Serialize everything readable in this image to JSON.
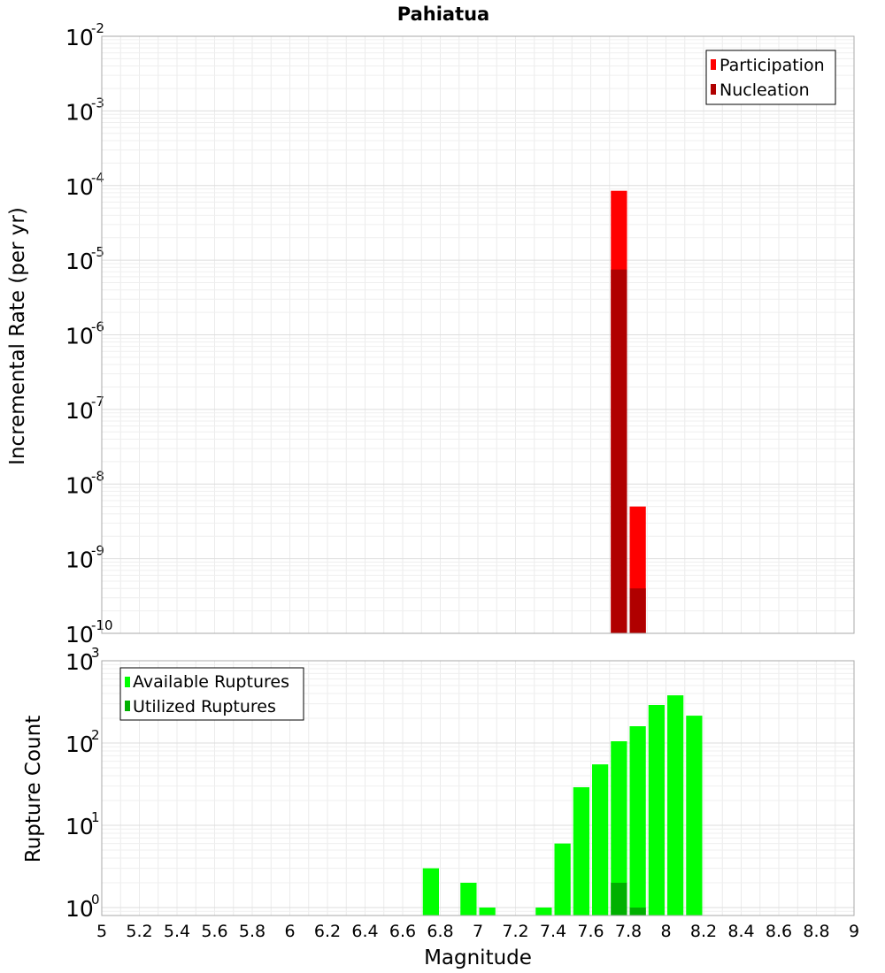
{
  "chart_data": [
    {
      "type": "bar",
      "title": "Pahiatua",
      "xlabel": "",
      "ylabel": "Incremental Rate (per yr)",
      "yscale": "log",
      "ylim": [
        1e-10,
        0.01
      ],
      "xlim": [
        5,
        9
      ],
      "bin_width": 0.1,
      "grid": true,
      "legend_position": "top-right",
      "series": [
        {
          "name": "Participation",
          "color": "#ff0000",
          "points": [
            {
              "x": 7.75,
              "y": 8.5e-05
            },
            {
              "x": 7.85,
              "y": 5e-09
            }
          ]
        },
        {
          "name": "Nucleation",
          "color": "#b00000",
          "points": [
            {
              "x": 7.75,
              "y": 7.5e-06
            },
            {
              "x": 7.85,
              "y": 4e-10
            }
          ]
        }
      ]
    },
    {
      "type": "bar",
      "title": "",
      "xlabel": "Magnitude",
      "ylabel": "Rupture Count",
      "yscale": "log",
      "ylim": [
        0.8,
        1000
      ],
      "xlim": [
        5,
        9
      ],
      "bin_width": 0.1,
      "grid": true,
      "legend_position": "top-left",
      "x_ticks": [
        "5",
        "5.2",
        "5.4",
        "5.6",
        "5.8",
        "6",
        "6.2",
        "6.4",
        "6.6",
        "6.8",
        "7",
        "7.2",
        "7.4",
        "7.6",
        "7.8",
        "8",
        "8.2",
        "8.4",
        "8.6",
        "8.8",
        "9"
      ],
      "series": [
        {
          "name": "Available Ruptures",
          "color": "#00ff00",
          "points": [
            {
              "x": 6.75,
              "y": 3
            },
            {
              "x": 6.95,
              "y": 2
            },
            {
              "x": 7.05,
              "y": 1
            },
            {
              "x": 7.35,
              "y": 1
            },
            {
              "x": 7.45,
              "y": 6
            },
            {
              "x": 7.55,
              "y": 29
            },
            {
              "x": 7.65,
              "y": 55
            },
            {
              "x": 7.75,
              "y": 105
            },
            {
              "x": 7.85,
              "y": 160
            },
            {
              "x": 7.95,
              "y": 290
            },
            {
              "x": 8.05,
              "y": 380
            },
            {
              "x": 8.15,
              "y": 215
            }
          ]
        },
        {
          "name": "Utilized Ruptures",
          "color": "#00b000",
          "points": [
            {
              "x": 7.75,
              "y": 2
            },
            {
              "x": 7.85,
              "y": 1
            }
          ]
        }
      ]
    }
  ]
}
